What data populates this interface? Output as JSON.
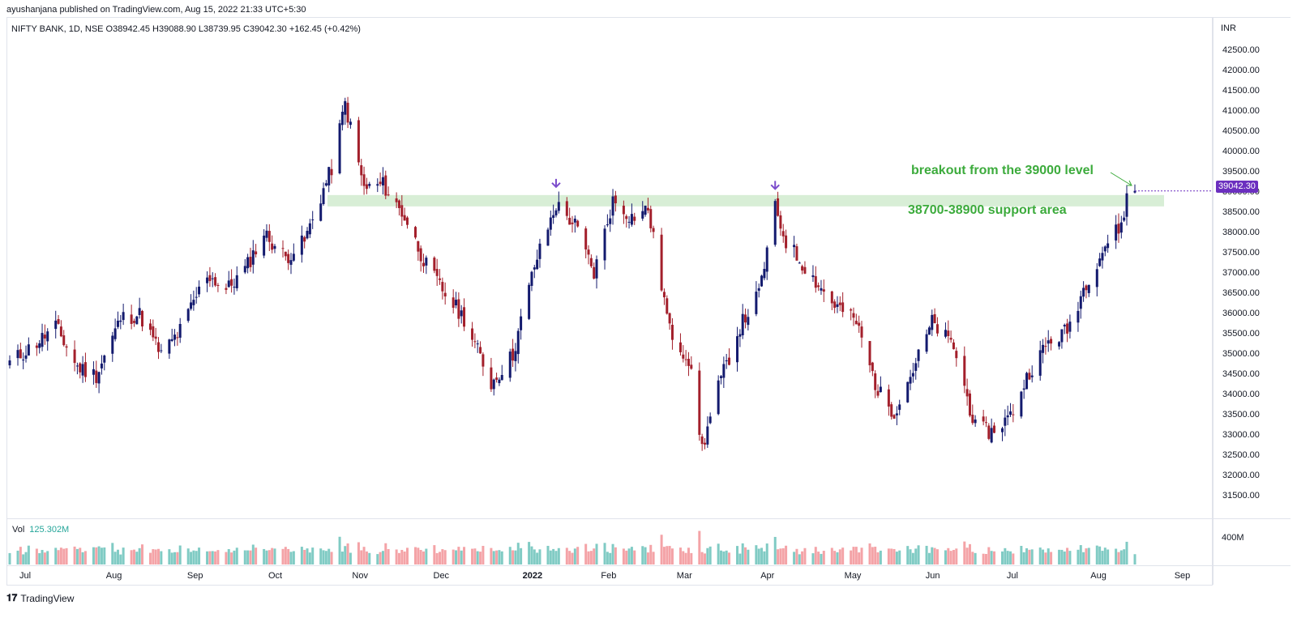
{
  "header": {
    "publisher": "ayushanjana published on TradingView.com, Aug 15, 2022 21:33 UTC+5:30"
  },
  "legend": {
    "text": "NIFTY BANK, 1D, NSE  O38942.45  H39088.90  L38739.95  C39042.30  +162.45 (+0.42%)"
  },
  "price_scale": {
    "currency": "INR",
    "ticks": [
      "42500.00",
      "42000.00",
      "41500.00",
      "41000.00",
      "40500.00",
      "40000.00",
      "39500.00",
      "39000.00",
      "38500.00",
      "38000.00",
      "37500.00",
      "37000.00",
      "36500.00",
      "36000.00",
      "35500.00",
      "35000.00",
      "34500.00",
      "34000.00",
      "33500.00",
      "33000.00",
      "32500.00",
      "32000.00",
      "31500.00"
    ],
    "last_price": "39042.30"
  },
  "volume": {
    "label": "Vol",
    "value": "125.302M",
    "scale_tick": "400M"
  },
  "annotations": {
    "breakout": "breakout from the 39000 level",
    "support": "38700-38900 support area",
    "arrow": "➜"
  },
  "footer": {
    "logo": "𝟏𝟕",
    "brand": "TradingView"
  },
  "colors": {
    "up": "#131a6e",
    "down": "#a31f2b",
    "vol_up": "#80cbc4",
    "vol_down": "#f4a3a7",
    "support_zone": "#d8eed6",
    "annotation": "#3cab3c",
    "arrow": "#7c4dcc",
    "badge": "#6b2fbf"
  },
  "chart_data": {
    "type": "candlestick",
    "title": "NIFTY BANK, 1D, NSE",
    "ylim": [
      31250,
      42750
    ],
    "x_ticks": [
      "Jul",
      "Aug",
      "Sep",
      "Oct",
      "Nov",
      "Dec",
      "2022",
      "Feb",
      "Mar",
      "Apr",
      "May",
      "Jun",
      "Jul",
      "Aug",
      "Sep"
    ],
    "support_zone": [
      38700,
      38900
    ],
    "last_close": 39042.3,
    "anchors": [
      [
        "2021-06-25",
        34800
      ],
      [
        "2021-07-05",
        35300
      ],
      [
        "2021-07-12",
        35700
      ],
      [
        "2021-07-20",
        34700
      ],
      [
        "2021-07-27",
        34500
      ],
      [
        "2021-08-05",
        35900
      ],
      [
        "2021-08-12",
        36000
      ],
      [
        "2021-08-20",
        35000
      ],
      [
        "2021-08-27",
        35600
      ],
      [
        "2021-09-06",
        37000
      ],
      [
        "2021-09-13",
        36600
      ],
      [
        "2021-09-20",
        37100
      ],
      [
        "2021-09-27",
        38000
      ],
      [
        "2021-10-05",
        37400
      ],
      [
        "2021-10-12",
        37800
      ],
      [
        "2021-10-18",
        38900
      ],
      [
        "2021-10-22",
        39600
      ],
      [
        "2021-10-27",
        41200
      ],
      [
        "2021-11-03",
        39100
      ],
      [
        "2021-11-10",
        39200
      ],
      [
        "2021-11-18",
        38400
      ],
      [
        "2021-11-26",
        37200
      ],
      [
        "2021-12-03",
        36500
      ],
      [
        "2021-12-10",
        35900
      ],
      [
        "2021-12-20",
        34300
      ],
      [
        "2021-12-28",
        35000
      ],
      [
        "2022-01-05",
        37200
      ],
      [
        "2022-01-13",
        38700
      ],
      [
        "2022-01-20",
        38200
      ],
      [
        "2022-01-27",
        37000
      ],
      [
        "2022-02-03",
        38800
      ],
      [
        "2022-02-10",
        38400
      ],
      [
        "2022-02-16",
        38600
      ],
      [
        "2022-02-24",
        35600
      ],
      [
        "2022-03-03",
        34900
      ],
      [
        "2022-03-08",
        32700
      ],
      [
        "2022-03-14",
        34200
      ],
      [
        "2022-03-22",
        35700
      ],
      [
        "2022-03-29",
        36500
      ],
      [
        "2022-04-04",
        38600
      ],
      [
        "2022-04-08",
        37800
      ],
      [
        "2022-04-18",
        36900
      ],
      [
        "2022-04-25",
        36300
      ],
      [
        "2022-05-04",
        35800
      ],
      [
        "2022-05-12",
        34100
      ],
      [
        "2022-05-18",
        33600
      ],
      [
        "2022-05-26",
        34800
      ],
      [
        "2022-06-01",
        35800
      ],
      [
        "2022-06-09",
        35200
      ],
      [
        "2022-06-17",
        33200
      ],
      [
        "2022-06-23",
        33100
      ],
      [
        "2022-06-30",
        33500
      ],
      [
        "2022-07-07",
        34600
      ],
      [
        "2022-07-14",
        35300
      ],
      [
        "2022-07-21",
        35600
      ],
      [
        "2022-07-28",
        36800
      ],
      [
        "2022-08-04",
        37700
      ],
      [
        "2022-08-10",
        38200
      ],
      [
        "2022-08-12",
        38880
      ],
      [
        "2022-08-15",
        39042.3
      ]
    ],
    "volume_ylim": [
      0,
      500000000
    ]
  }
}
